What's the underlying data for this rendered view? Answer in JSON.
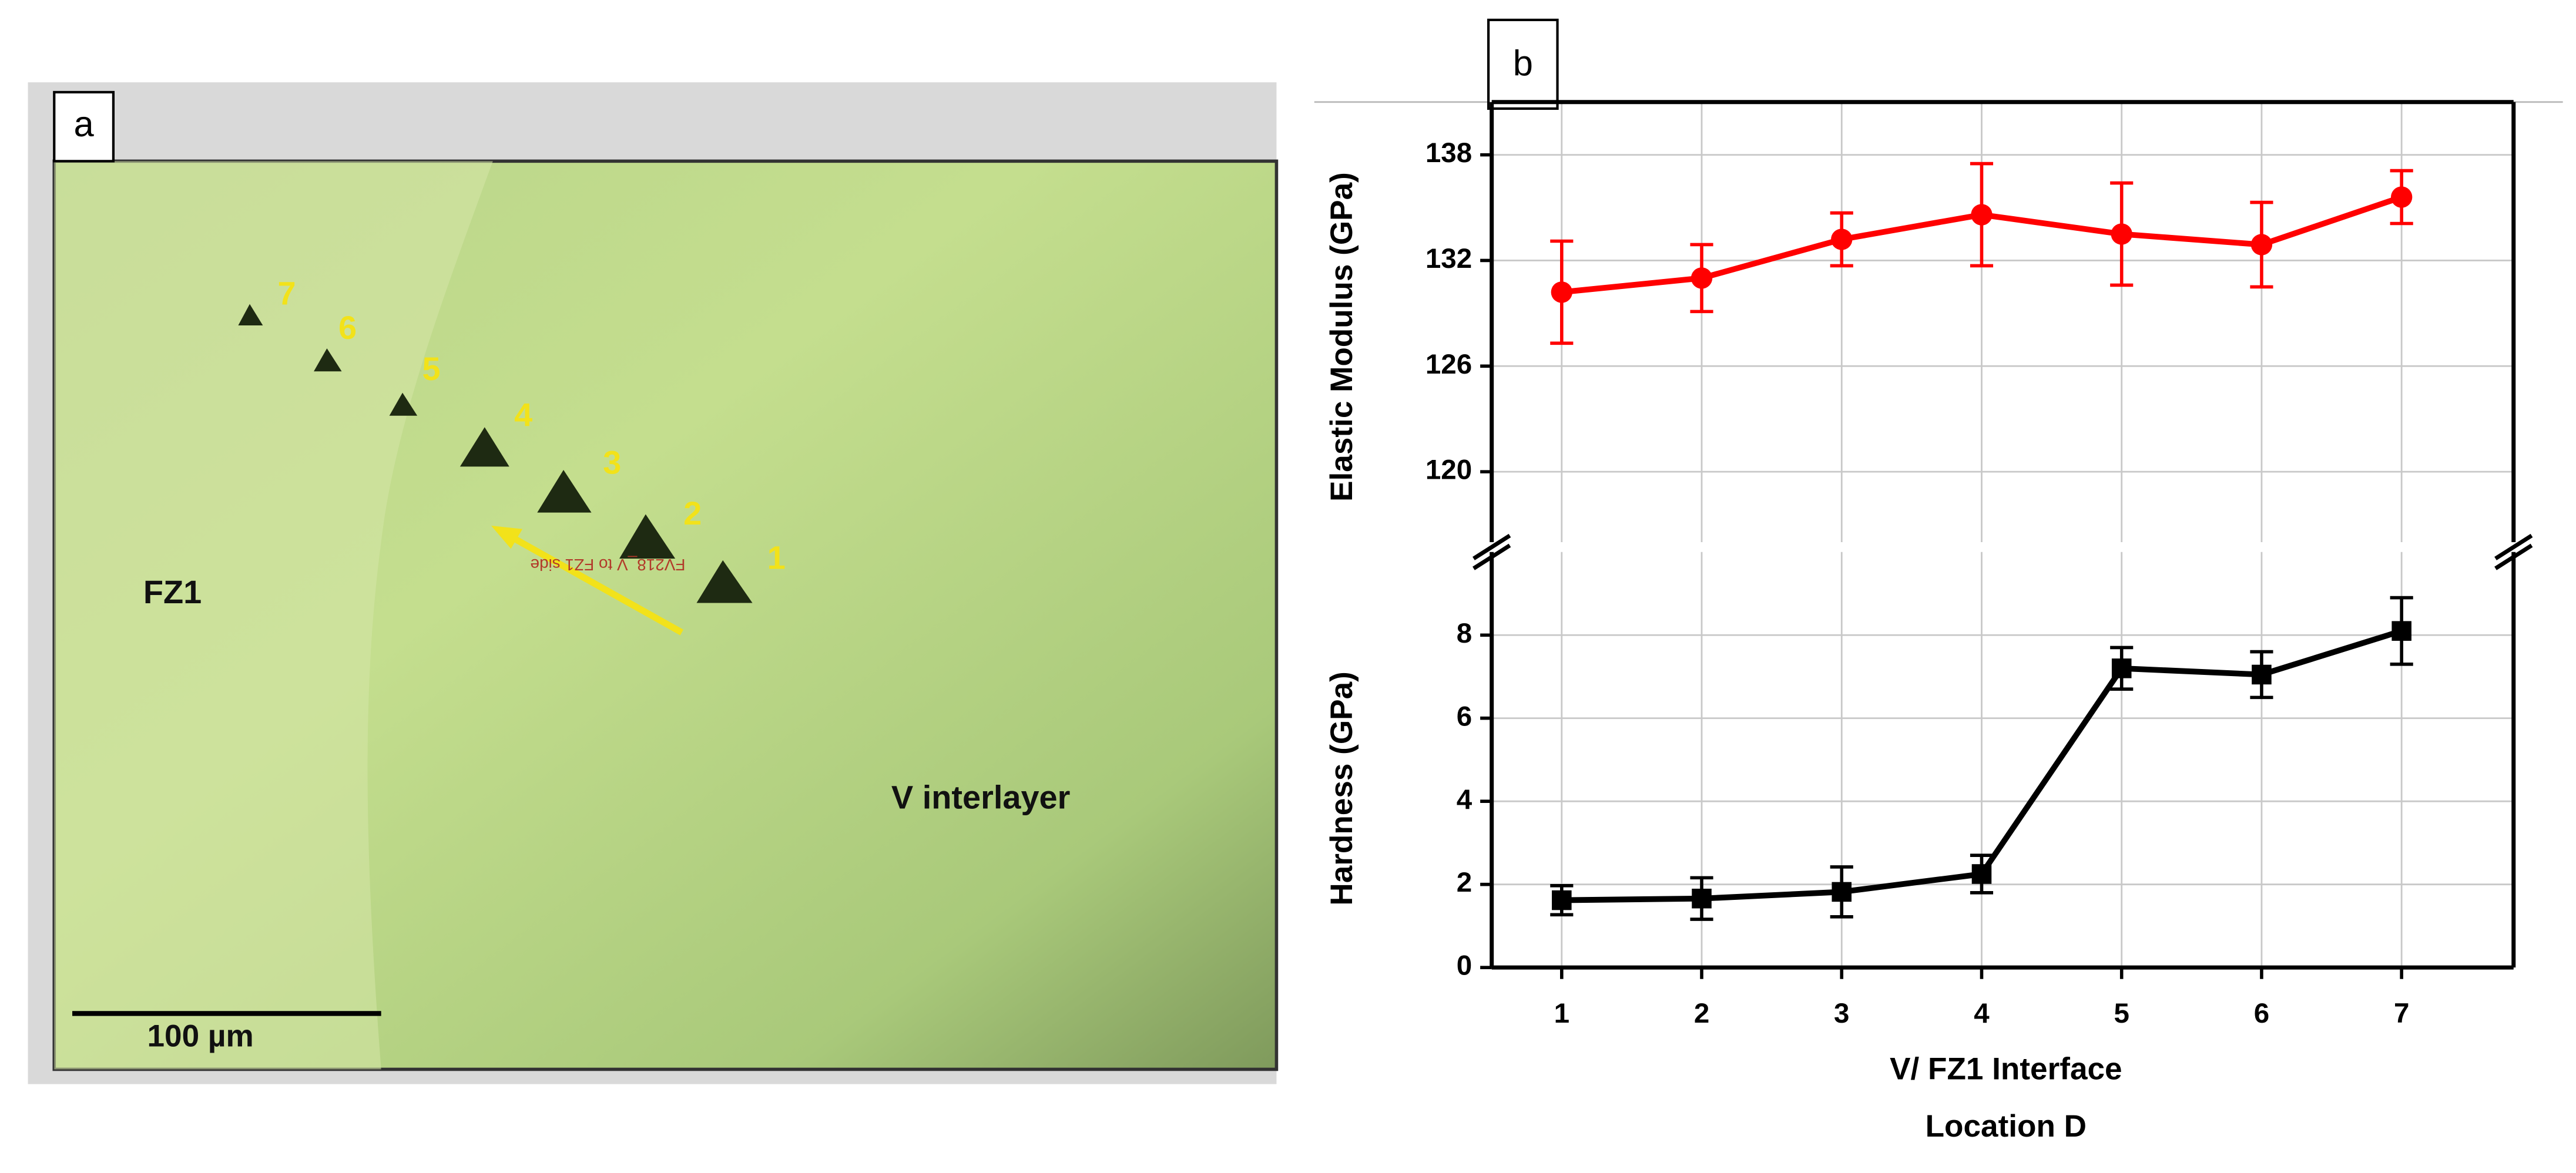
{
  "panel_a": {
    "label": "a",
    "indent_labels": [
      1,
      2,
      3,
      4,
      5,
      6,
      7
    ],
    "region_left": "FZ1",
    "region_right": "V interlayer",
    "scale_bar": "100 µm",
    "stage_text": "FV218_V to FZ1 side"
  },
  "panel_b_label": "b",
  "chart_data": [
    {
      "type": "line",
      "ylabel": "Elastic Modulus (GPa)",
      "x": [
        1,
        2,
        3,
        4,
        5,
        6,
        7
      ],
      "xlim": [
        0.5,
        7.8
      ],
      "ylim": [
        116,
        141
      ],
      "yticks": [
        120,
        126,
        132,
        138
      ],
      "grid": true,
      "series": [
        {
          "color": "#ff0000",
          "marker": "circle",
          "values": [
            130.2,
            131.0,
            133.2,
            134.6,
            133.5,
            132.9,
            135.6
          ],
          "errors": [
            2.9,
            1.9,
            1.5,
            2.9,
            2.9,
            2.4,
            1.5
          ]
        }
      ]
    },
    {
      "type": "line",
      "ylabel": "Hardness (GPa)",
      "xlabel": "V/ FZ1 Interface",
      "xlabel_2": "Location D",
      "x": [
        1,
        2,
        3,
        4,
        5,
        6,
        7
      ],
      "xlim": [
        0.5,
        7.8
      ],
      "xticks": [
        1,
        2,
        3,
        4,
        5,
        6,
        7
      ],
      "ylim": [
        0,
        10
      ],
      "yticks": [
        0,
        2,
        4,
        6,
        8
      ],
      "grid": true,
      "series": [
        {
          "color": "#000000",
          "marker": "square",
          "values": [
            1.62,
            1.66,
            1.82,
            2.25,
            7.2,
            7.05,
            8.1
          ],
          "errors": [
            0.35,
            0.5,
            0.6,
            0.45,
            0.5,
            0.55,
            0.8
          ]
        }
      ]
    }
  ]
}
